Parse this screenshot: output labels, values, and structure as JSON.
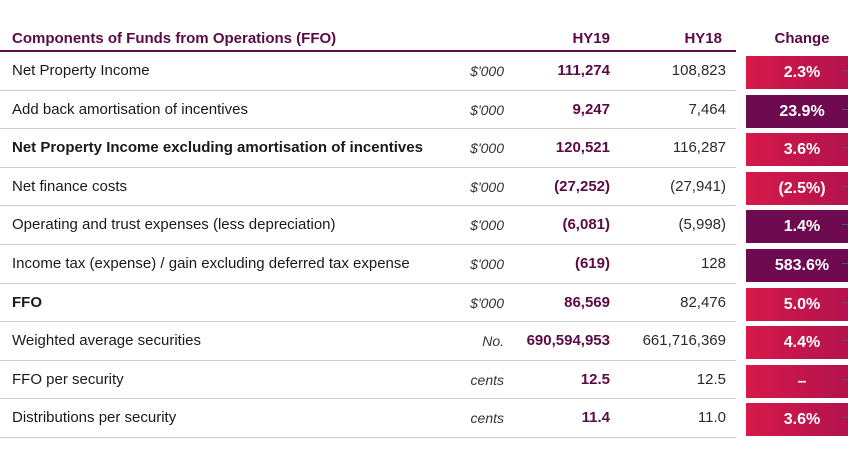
{
  "header": {
    "title": "Components of Funds from Operations (FFO)",
    "hy19": "HY19",
    "hy18": "HY18",
    "change": "Change"
  },
  "colors": {
    "accent_purple": "#5b0a47",
    "change_red": "#d6194a",
    "change_purple": "#6e0a4f"
  },
  "rows": [
    {
      "label": "Net Property Income",
      "unit": "$'000",
      "hy19": "111,274",
      "hy18": "108,823",
      "change": "2.3%",
      "bold": false,
      "change_style": "red"
    },
    {
      "label": "Add back amortisation of incentives",
      "unit": "$'000",
      "hy19": "9,247",
      "hy18": "7,464",
      "change": "23.9%",
      "bold": false,
      "change_style": "purple"
    },
    {
      "label": "Net Property Income excluding amortisation of incentives",
      "unit": "$'000",
      "hy19": "120,521",
      "hy18": "116,287",
      "change": "3.6%",
      "bold": true,
      "change_style": "red"
    },
    {
      "label": "Net finance costs",
      "unit": "$'000",
      "hy19": "(27,252)",
      "hy18": "(27,941)",
      "change": "(2.5%)",
      "bold": false,
      "change_style": "red"
    },
    {
      "label": "Operating and trust expenses (less depreciation)",
      "unit": "$'000",
      "hy19": "(6,081)",
      "hy18": "(5,998)",
      "change": "1.4%",
      "bold": false,
      "change_style": "purple"
    },
    {
      "label": "Income tax (expense) / gain excluding deferred tax expense",
      "unit": "$'000",
      "hy19": "(619)",
      "hy18": "128",
      "change": "583.6%",
      "bold": false,
      "change_style": "purple"
    },
    {
      "label": "FFO",
      "unit": "$'000",
      "hy19": "86,569",
      "hy18": "82,476",
      "change": "5.0%",
      "bold": true,
      "change_style": "red"
    },
    {
      "label": "Weighted average securities",
      "unit": "No.",
      "hy19": "690,594,953",
      "hy18": "661,716,369",
      "change": "4.4%",
      "bold": false,
      "change_style": "red"
    },
    {
      "label": "FFO per security",
      "unit": "cents",
      "hy19": "12.5",
      "hy18": "12.5",
      "change": "–",
      "bold": false,
      "change_style": "red"
    },
    {
      "label": "Distributions per security",
      "unit": "cents",
      "hy19": "11.4",
      "hy18": "11.0",
      "change": "3.6%",
      "bold": false,
      "change_style": "red"
    }
  ]
}
